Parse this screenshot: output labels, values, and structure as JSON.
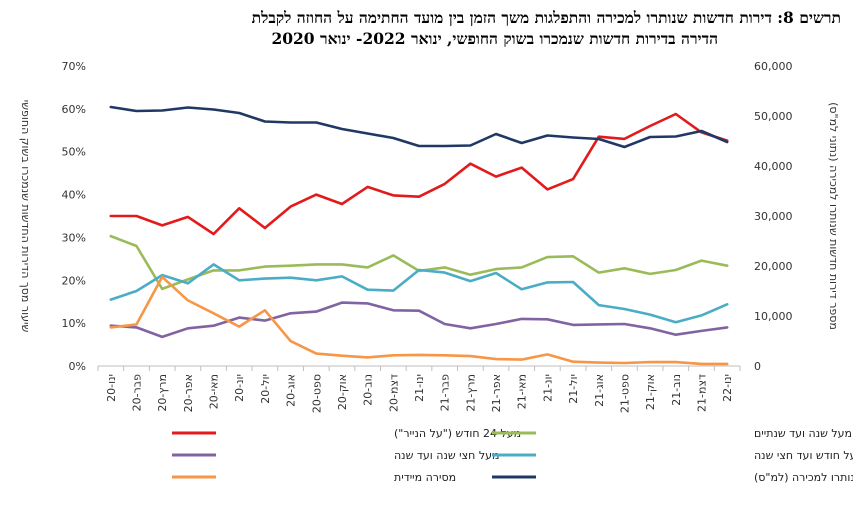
{
  "chart_data": {
    "type": "line",
    "title": "תרשים 8: דירות חדשות שנותרו למכירה והתפלגות משך הזמן בין מועד החתימה על החוזה לקבלת הדירה בדירות חדשות שנמכרו בשוק החופשי,  ינואר 2022- ינואר 2020",
    "title_lines": [
      "תרשים 8: דירות חדשות שנותרו למכירה והתפלגות משך הזמן בין מועד החתימה על החוזה לקבלת",
      "הדירה בדירות חדשות שנמכרו בשוק החופשי,  ינואר 2022- ינואר 2020"
    ],
    "left_axis_label": "שיעור מסך הדירות החדשות שנמכרו בשוק החופשי",
    "right_axis_label": "מספר דירות חדשות שנותרו למכירה (נתוני למ\"ס)",
    "left_ylim": [
      0,
      70
    ],
    "left_ticks": [
      "0%",
      "10%",
      "20%",
      "30%",
      "40%",
      "50%",
      "60%",
      "70%"
    ],
    "right_ylim": [
      0,
      60000
    ],
    "right_ticks": [
      "0",
      "10,000",
      "20,000",
      "30,000",
      "40,000",
      "50,000",
      "60,000"
    ],
    "grid": false,
    "legend_position": "bottom",
    "categories": [
      "ינו-20",
      "פבר-20",
      "מרץ-20",
      "אפר-20",
      "מאי-20",
      "יונ-20",
      "יול-20",
      "אוג-20",
      "ספט-20",
      "אוק-20",
      "נוב-20",
      "דצמ-20",
      "ינו-21",
      "פבר-21",
      "מרץ-21",
      "אפר-21",
      "מאי-21",
      "יונ-21",
      "יול-21",
      "אוג-21",
      "ספט-21",
      "אוק-21",
      "נוב-21",
      "דצמ-21",
      "ינו-22"
    ],
    "series": [
      {
        "name": "מעל 24 חודש (\"על הנייר\")",
        "color": "#e31a1c",
        "axis": "left",
        "values": [
          35,
          35,
          32.8,
          34.8,
          30.8,
          36.8,
          32.2,
          37.2,
          40,
          37.8,
          41.8,
          39.8,
          39.5,
          42.5,
          47.2,
          44.2,
          46.3,
          41.2,
          43.6,
          53.5,
          53,
          56,
          58.8,
          54.5,
          52.6
        ]
      },
      {
        "name": "מעל שנה ועד שנתיים",
        "color": "#9bbb59",
        "axis": "left",
        "values": [
          30.3,
          28,
          18,
          20.2,
          22.3,
          22.3,
          23.2,
          23.4,
          23.7,
          23.7,
          23,
          25.8,
          22.2,
          23,
          21.3,
          22.6,
          23,
          25.4,
          25.6,
          21.8,
          22.8,
          21.5,
          22.4,
          24.6,
          23.4
        ]
      },
      {
        "name": "מעל חצי שנה ועד שנה",
        "color": "#8064a2",
        "axis": "left",
        "values": [
          9.4,
          9,
          6.8,
          8.8,
          9.4,
          11.3,
          10.6,
          12.3,
          12.7,
          14.8,
          14.6,
          13,
          12.9,
          9.8,
          8.8,
          9.8,
          11,
          10.9,
          9.6,
          9.7,
          9.8,
          8.8,
          7.3,
          8.2,
          9
        ]
      },
      {
        "name": "מעל חודש ועד חצי שנה",
        "color": "#4bacc6",
        "axis": "left",
        "values": [
          15.5,
          17.5,
          21.2,
          19.3,
          23.7,
          20,
          20.4,
          20.6,
          20,
          20.9,
          17.8,
          17.6,
          22.4,
          21.8,
          19.8,
          21.7,
          17.9,
          19.5,
          19.6,
          14.2,
          13.3,
          12,
          10.2,
          11.8,
          14.4
        ]
      },
      {
        "name": "מסירה מיידית",
        "color": "#f79646",
        "axis": "left",
        "values": [
          9,
          9.7,
          20.8,
          15.3,
          12.3,
          9.2,
          13,
          5.8,
          2.9,
          2.4,
          2.0,
          2.5,
          2.6,
          2.5,
          2.3,
          1.6,
          1.5,
          2.7,
          1,
          0.8,
          0.7,
          0.9,
          0.9,
          0.5,
          0.5
        ]
      },
      {
        "name": "מספר דירות חדשות שנותרו למכירה (למ\"ס)",
        "color": "#1f3864",
        "axis": "right",
        "values": [
          51800,
          51000,
          51100,
          51700,
          51300,
          50600,
          48900,
          48700,
          48700,
          47400,
          46500,
          45600,
          44000,
          44000,
          44100,
          46400,
          44600,
          46100,
          45700,
          45400,
          43800,
          45800,
          45900,
          47000,
          44800
        ]
      }
    ]
  }
}
